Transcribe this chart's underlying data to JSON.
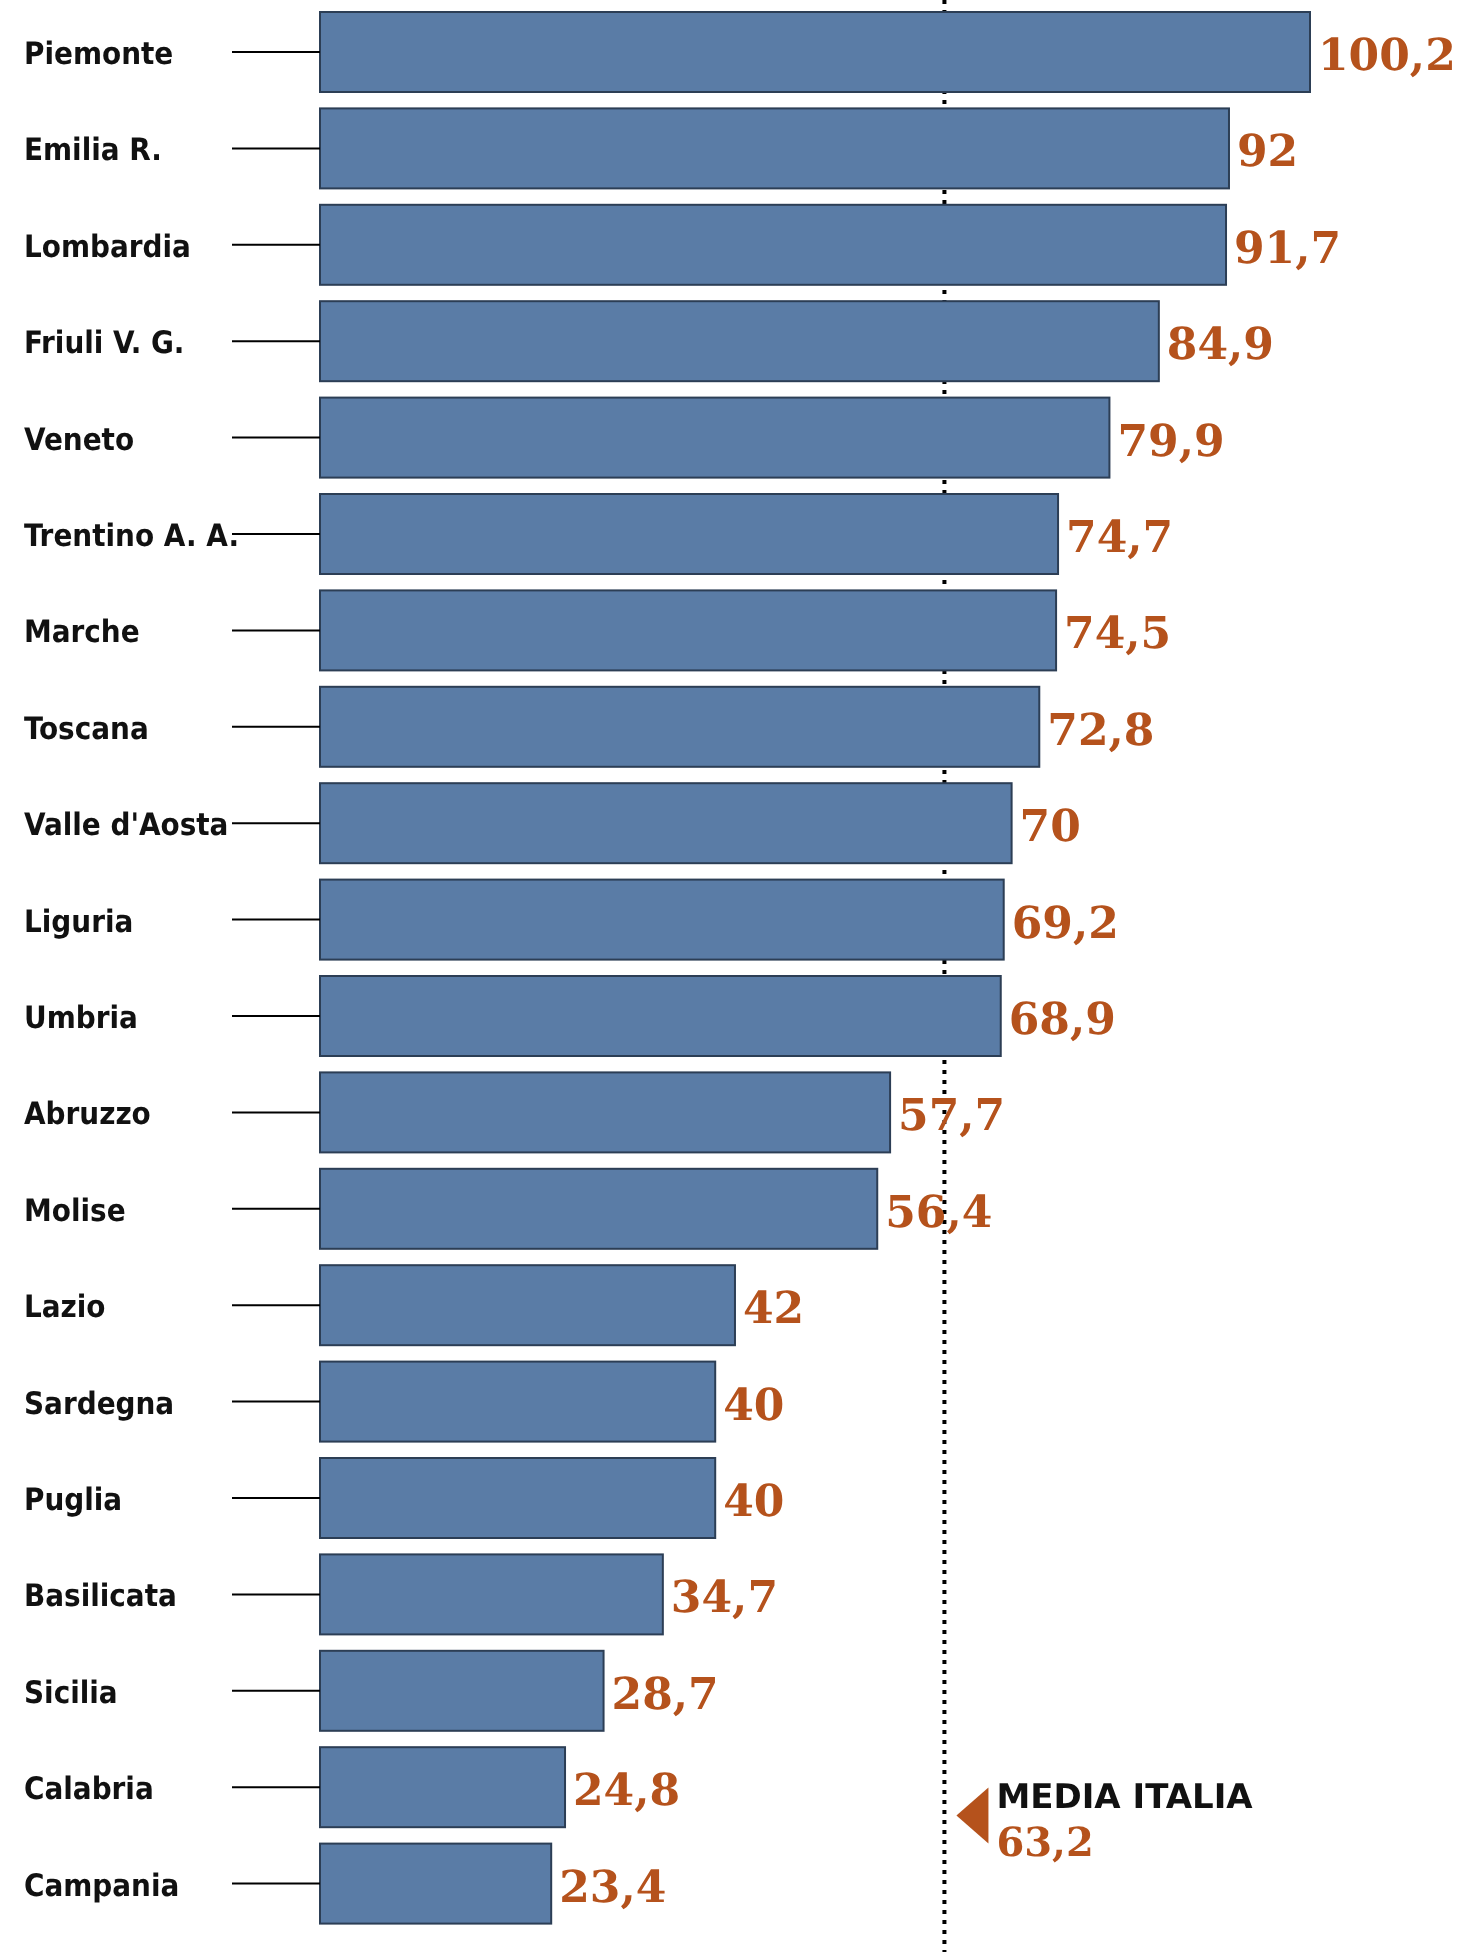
{
  "chart_data": {
    "type": "bar",
    "orientation": "horizontal",
    "categories": [
      "Piemonte",
      "Emilia R.",
      "Lombardia",
      "Friuli V. G.",
      "Veneto",
      "Trentino A. A.",
      "Marche",
      "Toscana",
      "Valle d'Aosta",
      "Liguria",
      "Umbria",
      "Abruzzo",
      "Molise",
      "Lazio",
      "Sardegna",
      "Puglia",
      "Basilicata",
      "Sicilia",
      "Calabria",
      "Campania"
    ],
    "values": [
      100.2,
      92,
      91.7,
      84.9,
      79.9,
      74.7,
      74.5,
      72.8,
      70,
      69.2,
      68.9,
      57.7,
      56.4,
      42,
      40,
      40,
      34.7,
      28.7,
      24.8,
      23.4
    ],
    "value_labels": [
      "100,2",
      "92",
      "91,7",
      "84,9",
      "79,9",
      "74,7",
      "74,5",
      "72,8",
      "70",
      "69,2",
      "68,9",
      "57,7",
      "56,4",
      "42",
      "40",
      "40",
      "34,7",
      "28,7",
      "24,8",
      "23,4"
    ],
    "color": "#5a7ca6",
    "ref_lines": [
      {
        "axis": "x",
        "value": 63.2,
        "label": "MEDIA ITALIA",
        "color": "#000000",
        "line_style": "dotted"
      }
    ],
    "annotations": [
      {
        "text": "63,2",
        "x": 63.2
      }
    ],
    "tick_labels": "y"
  }
}
